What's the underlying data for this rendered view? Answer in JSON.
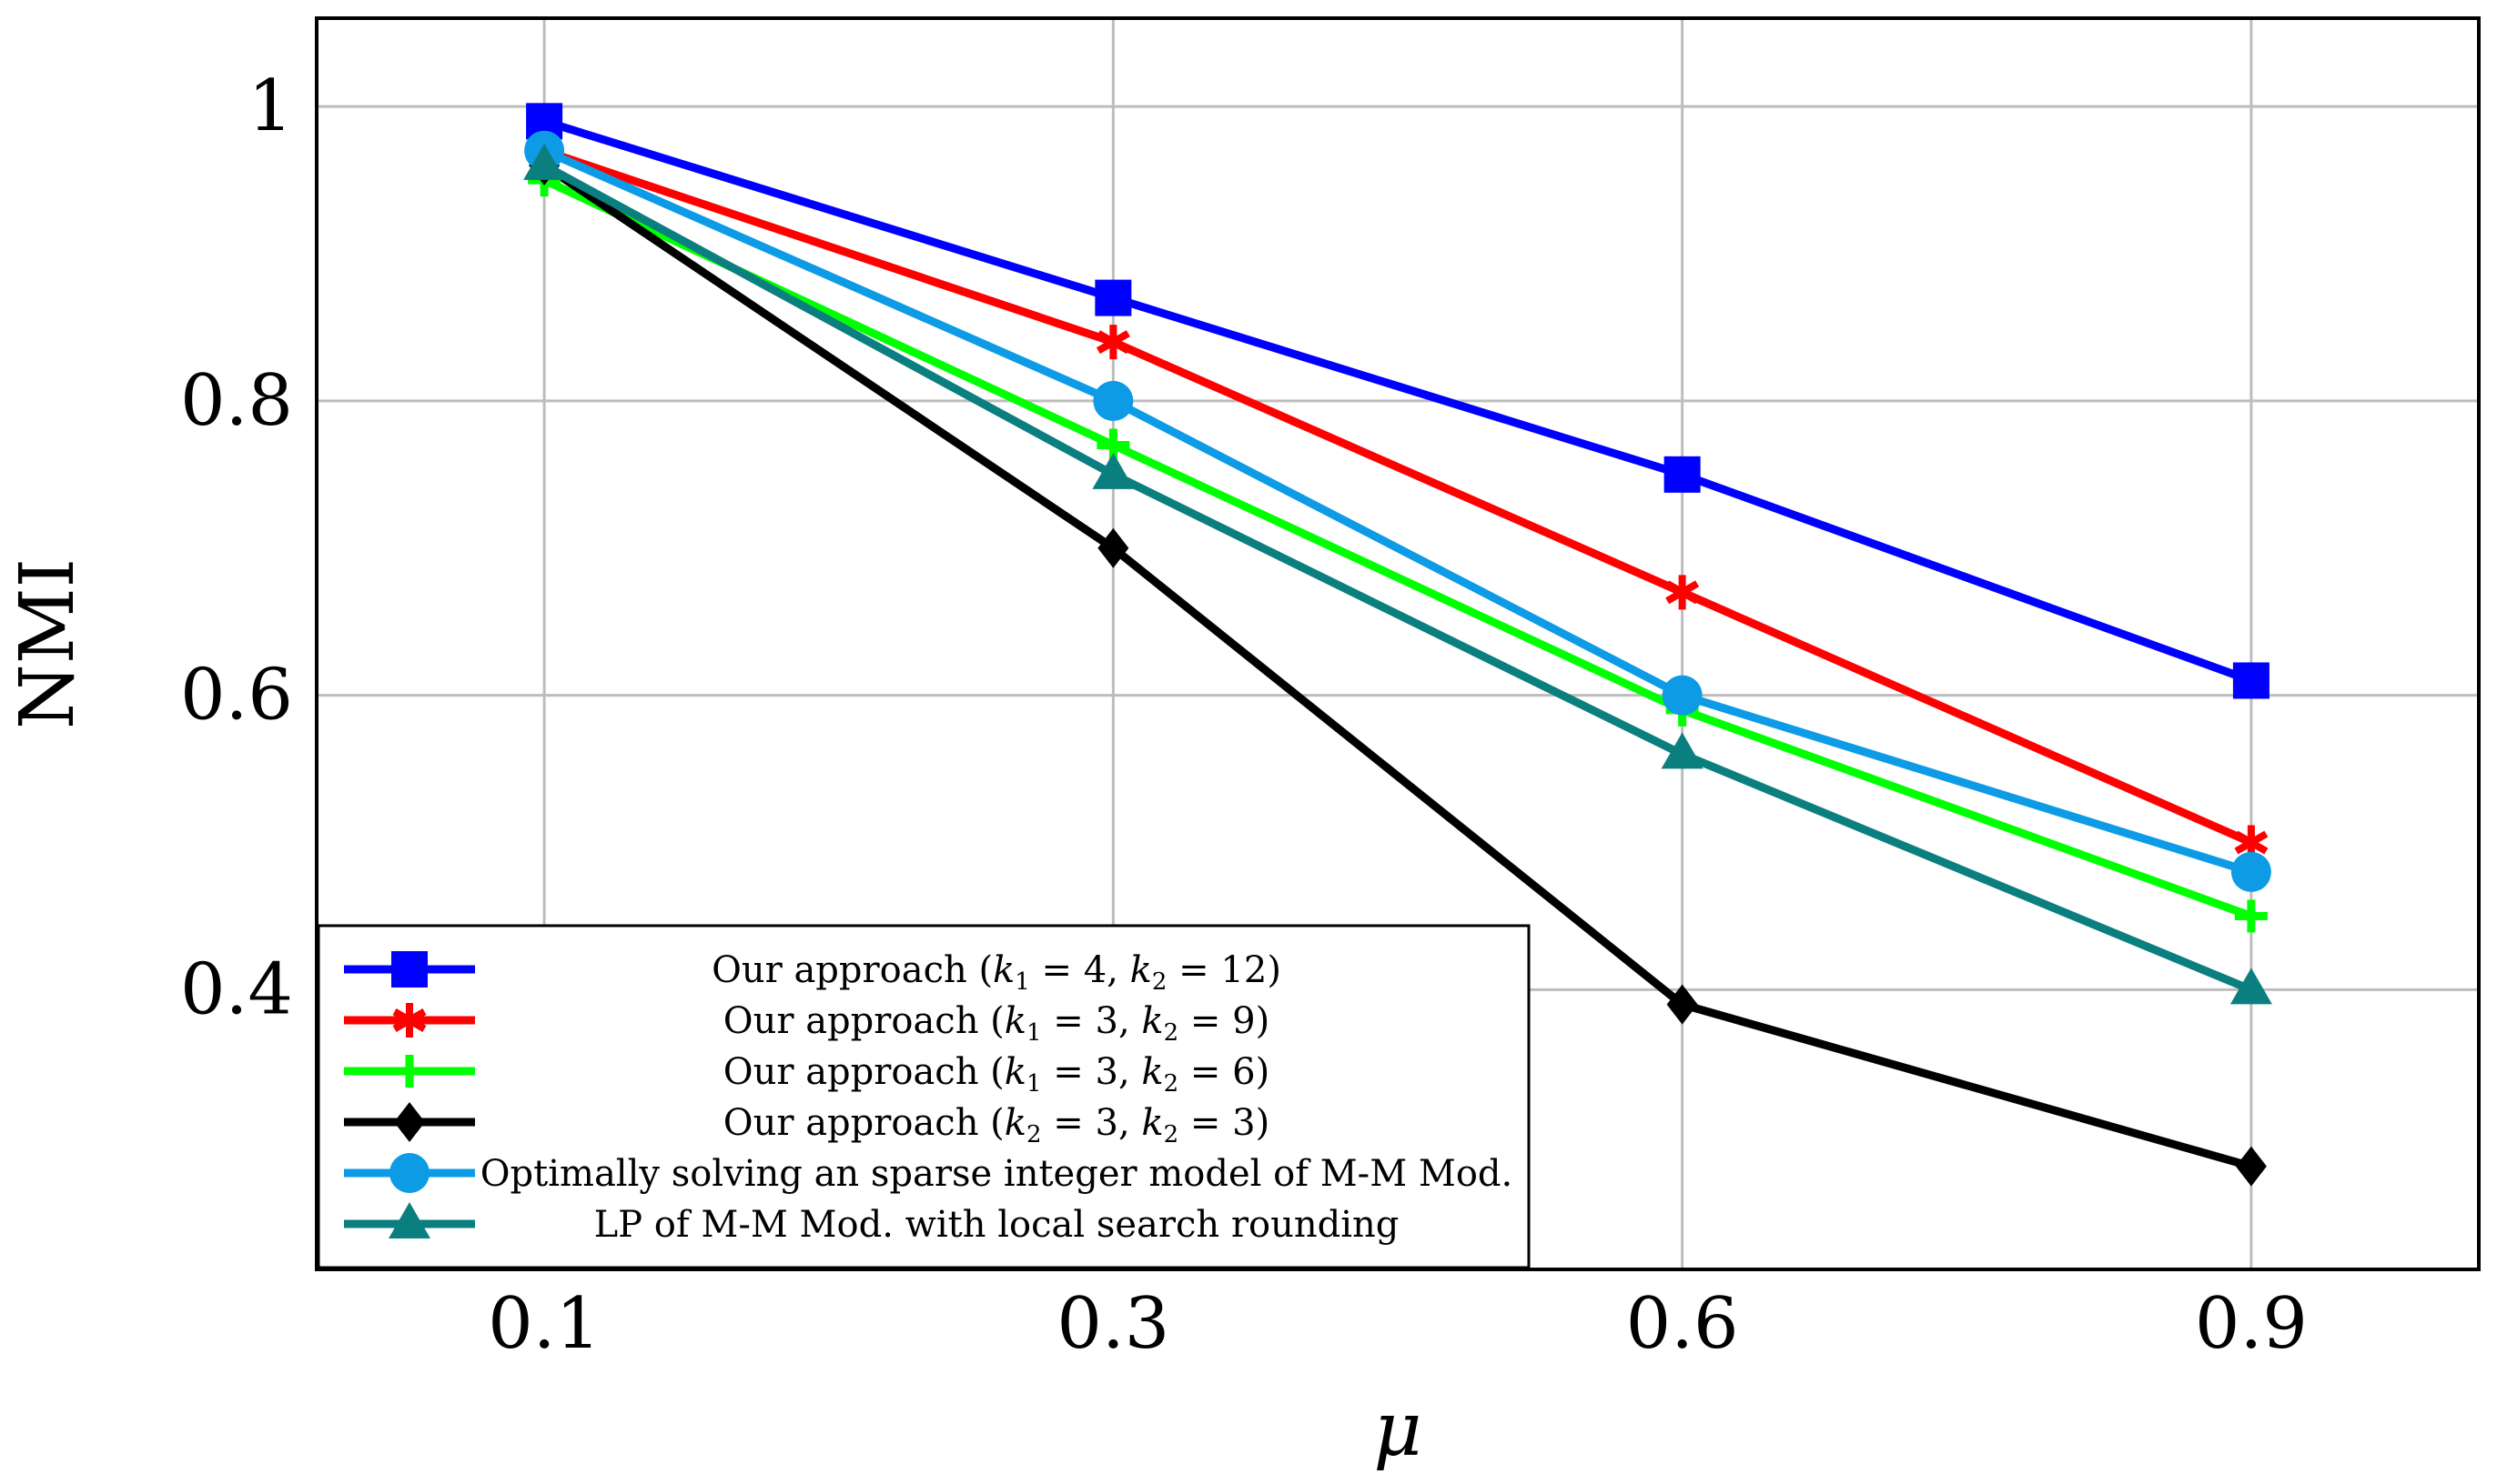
{
  "chart_data": {
    "type": "line",
    "title": "",
    "xlabel": "μ",
    "ylabel": "NMI",
    "categories": [
      "0.1",
      "0.3",
      "0.6",
      "0.9"
    ],
    "y_ticks": [
      "0.4",
      "0.6",
      "0.8",
      "1"
    ],
    "y_tick_values": [
      0.4,
      0.6,
      0.8,
      1.0
    ],
    "ylim": [
      0.21,
      1.06
    ],
    "x_range": [
      -0.4,
      3.4
    ],
    "grid": true,
    "legend_position": "bottom-left",
    "series": [
      {
        "name": "Our approach (k1 = 4, k2 = 12)",
        "label_parts": [
          "Our approach (",
          "k",
          "1",
          " = 4, ",
          "k",
          "2",
          " = 12)"
        ],
        "color": "#0000ff",
        "marker": "square",
        "values": [
          0.99,
          0.87,
          0.75,
          0.61
        ]
      },
      {
        "name": "Our approach (k1 = 3, k2 = 9)",
        "label_parts": [
          "Our approach (",
          "k",
          "1",
          " = 3, ",
          "k",
          "2",
          " = 9)"
        ],
        "color": "#ff0000",
        "marker": "asterisk",
        "values": [
          0.97,
          0.84,
          0.67,
          0.5
        ]
      },
      {
        "name": "Our approach (k1 = 3, k2 = 6)",
        "label_parts": [
          "Our approach (",
          "k",
          "1",
          " = 3, ",
          "k",
          "2",
          " = 6)"
        ],
        "color": "#00ff00",
        "marker": "plus",
        "values": [
          0.95,
          0.77,
          0.59,
          0.45
        ]
      },
      {
        "name": "Our approach (k2 = 3, k2 = 3)",
        "label_parts": [
          "Our approach (",
          "k",
          "2",
          " = 3, ",
          "k",
          "2",
          " = 3)"
        ],
        "color": "#000000",
        "marker": "diamond",
        "values": [
          0.96,
          0.7,
          0.39,
          0.28
        ]
      },
      {
        "name": "Optimally solving an sparse integer model of M-M Mod.",
        "label_parts": [
          "Optimally solving an sparse integer model of M-M Mod."
        ],
        "color": "#0d9be6",
        "marker": "circle",
        "values": [
          0.97,
          0.8,
          0.6,
          0.48
        ]
      },
      {
        "name": "LP of M-M Mod. with local search rounding",
        "label_parts": [
          "LP of M-M Mod. with local search rounding"
        ],
        "color": "#0b7f7f",
        "marker": "triangle",
        "values": [
          0.96,
          0.75,
          0.56,
          0.4
        ]
      }
    ]
  }
}
